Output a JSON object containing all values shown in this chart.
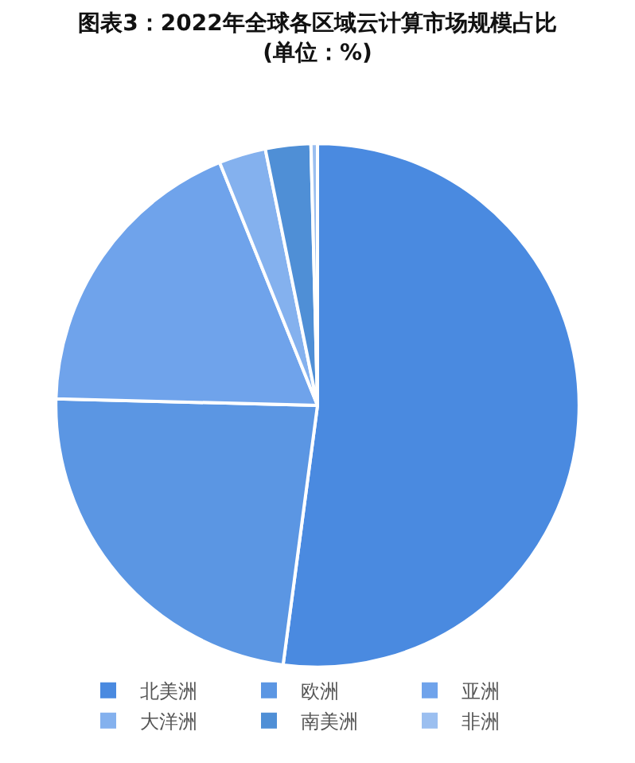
{
  "chart_data": {
    "type": "pie",
    "title": "图表3：2022年全球各区域云计算市场规模占比\n(单位：%)",
    "categories": [
      "北美洲",
      "欧洲",
      "亚洲",
      "大洋洲",
      "南美洲",
      "非洲"
    ],
    "values": [
      52.1,
      23.3,
      18.5,
      2.9,
      2.8,
      0.4
    ],
    "colors": [
      "#4a8ae0",
      "#5b96e3",
      "#6fa3eb",
      "#84b1ee",
      "#4f8fd6",
      "#9bbff0"
    ],
    "legend": "bottom"
  }
}
